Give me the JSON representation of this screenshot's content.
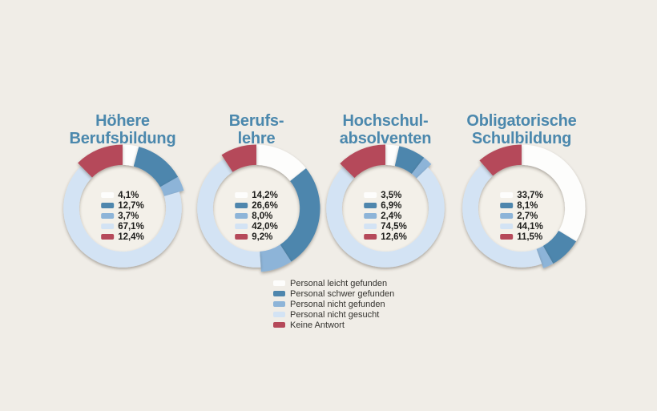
{
  "page": {
    "background_color": "#f0ede7",
    "title_color": "#4b88ad",
    "text_color": "#1d1d1b",
    "disc_color": "#f3f0e9"
  },
  "legend": {
    "position": "bottom-center",
    "items": [
      {
        "label": "Personal leicht gefunden",
        "color": "#fdfdfc"
      },
      {
        "label": "Personal schwer gefunden",
        "color": "#4e86ad"
      },
      {
        "label": "Personal nicht gefunden",
        "color": "#8db4d8"
      },
      {
        "label": "Personal nicht gesucht",
        "color": "#d3e3f4"
      },
      {
        "label": "Keine Antwort",
        "color": "#b5495a"
      }
    ]
  },
  "chart_data": [
    {
      "type": "pie",
      "title": "Höhere Berufsbildung",
      "title_lines": [
        "Höhere",
        "Berufsbildung"
      ],
      "categories": [
        "Personal leicht gefunden",
        "Personal schwer gefunden",
        "Personal nicht gefunden",
        "Personal nicht gesucht",
        "Keine Antwort"
      ],
      "values": [
        4.1,
        12.7,
        3.7,
        67.1,
        12.4
      ],
      "labels": [
        "4,1%",
        "12,7%",
        "3,7%",
        "67,1%",
        "12,4%"
      ]
    },
    {
      "type": "pie",
      "title": "Berufslehre",
      "title_lines": [
        "Berufs-",
        "lehre"
      ],
      "categories": [
        "Personal leicht gefunden",
        "Personal schwer gefunden",
        "Personal nicht gefunden",
        "Personal nicht gesucht",
        "Keine Antwort"
      ],
      "values": [
        14.2,
        26.6,
        8.0,
        42.0,
        9.2
      ],
      "labels": [
        "14,2%",
        "26,6%",
        "8,0%",
        "42,0%",
        "9,2%"
      ]
    },
    {
      "type": "pie",
      "title": "Hochschulabsolventen",
      "title_lines": [
        "Hochschul-",
        "absolventen"
      ],
      "categories": [
        "Personal leicht gefunden",
        "Personal schwer gefunden",
        "Personal nicht gefunden",
        "Personal nicht gesucht",
        "Keine Antwort"
      ],
      "values": [
        3.5,
        6.9,
        2.4,
        74.5,
        12.6
      ],
      "labels": [
        "3,5%",
        "6,9%",
        "2,4%",
        "74,5%",
        "12,6%"
      ]
    },
    {
      "type": "pie",
      "title": "Obligatorische Schulbildung",
      "title_lines": [
        "Obligatorische",
        "Schulbildung"
      ],
      "categories": [
        "Personal leicht gefunden",
        "Personal schwer gefunden",
        "Personal nicht gefunden",
        "Personal nicht gesucht",
        "Keine Antwort"
      ],
      "values": [
        33.7,
        8.1,
        2.7,
        44.1,
        11.5
      ],
      "labels": [
        "33,7%",
        "8,1%",
        "2,7%",
        "44,1%",
        "11,5%"
      ]
    }
  ]
}
